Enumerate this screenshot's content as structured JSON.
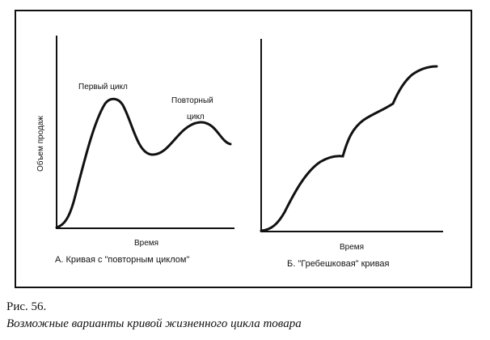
{
  "figure": {
    "number": "Рис. 56.",
    "title": "Возможные варианты кривой жизненного цикла товара"
  },
  "panel_a": {
    "y_label": "Объем продаж",
    "x_label": "Время",
    "caption": "А. Кривая с \"повторным циклом\"",
    "annotation_first": "Первый цикл",
    "annotation_repeat_line1": "Повторный",
    "annotation_repeat_line2": "цикл"
  },
  "panel_b": {
    "x_label": "Время",
    "caption": "Б. \"Гребешковая\" кривая"
  }
}
